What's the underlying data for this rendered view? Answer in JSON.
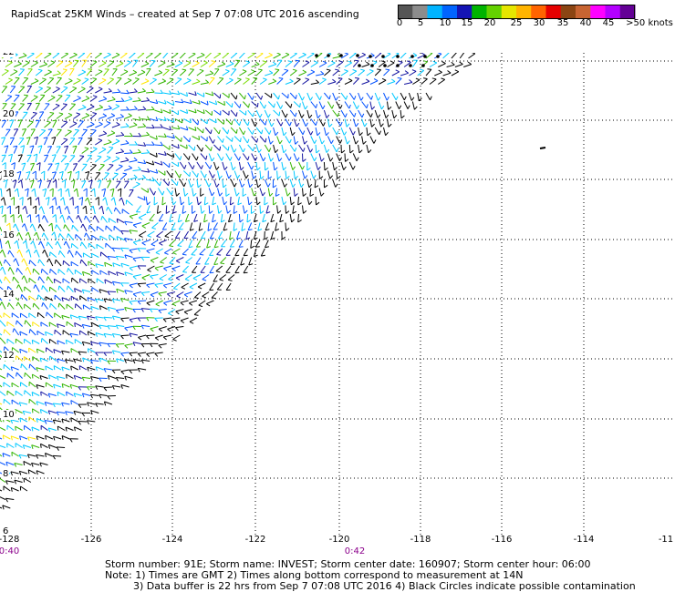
{
  "title": "RapidScat 25KM Winds – created at Sep  7 07:08 UTC 2016 ascending",
  "colorbar": {
    "colors": [
      "#555555",
      "#8c8c8c",
      "#00b4ff",
      "#0064ff",
      "#1414b4",
      "#00b400",
      "#64d200",
      "#e6e600",
      "#ffb400",
      "#ff6400",
      "#e60000",
      "#8b4513",
      "#c86432",
      "#ff00ff",
      "#b400ff",
      "#640096"
    ],
    "labels": [
      "0",
      "5",
      "10",
      "15",
      "20",
      "25",
      "30",
      "35",
      "40",
      "45",
      ">50 knots"
    ]
  },
  "map": {
    "lat_labels": [
      "22",
      "20",
      "18",
      "16",
      "14",
      "12",
      "10",
      "8",
      "6"
    ],
    "lon_labels": [
      "-128",
      "-126",
      "-124",
      "-122",
      "-120",
      "-118",
      "-116",
      "-114",
      "-11"
    ],
    "time_labels": [
      "0:40",
      "0:42"
    ],
    "wind_colors": {
      "black": "#000000",
      "cyan": "#00c8ff",
      "blue": "#0050ff",
      "navy": "#1414a0",
      "green": "#32b400",
      "lightgreen": "#78dc00",
      "yellow": "#ffe600"
    },
    "contamination_marker_color": "#000000"
  },
  "footer": {
    "storm_info": "Storm number: 91E;  Storm name: INVEST;  Storm center date: 160907;  Storm center hour: 06:00",
    "note1": "Note: 1) Times are GMT  2) Times along bottom correspond to measurement at 14N",
    "note2": "3) Data buffer is 22 hrs from Sep  7 07:08 UTC 2016  4) Black Circles indicate possible contamination"
  }
}
